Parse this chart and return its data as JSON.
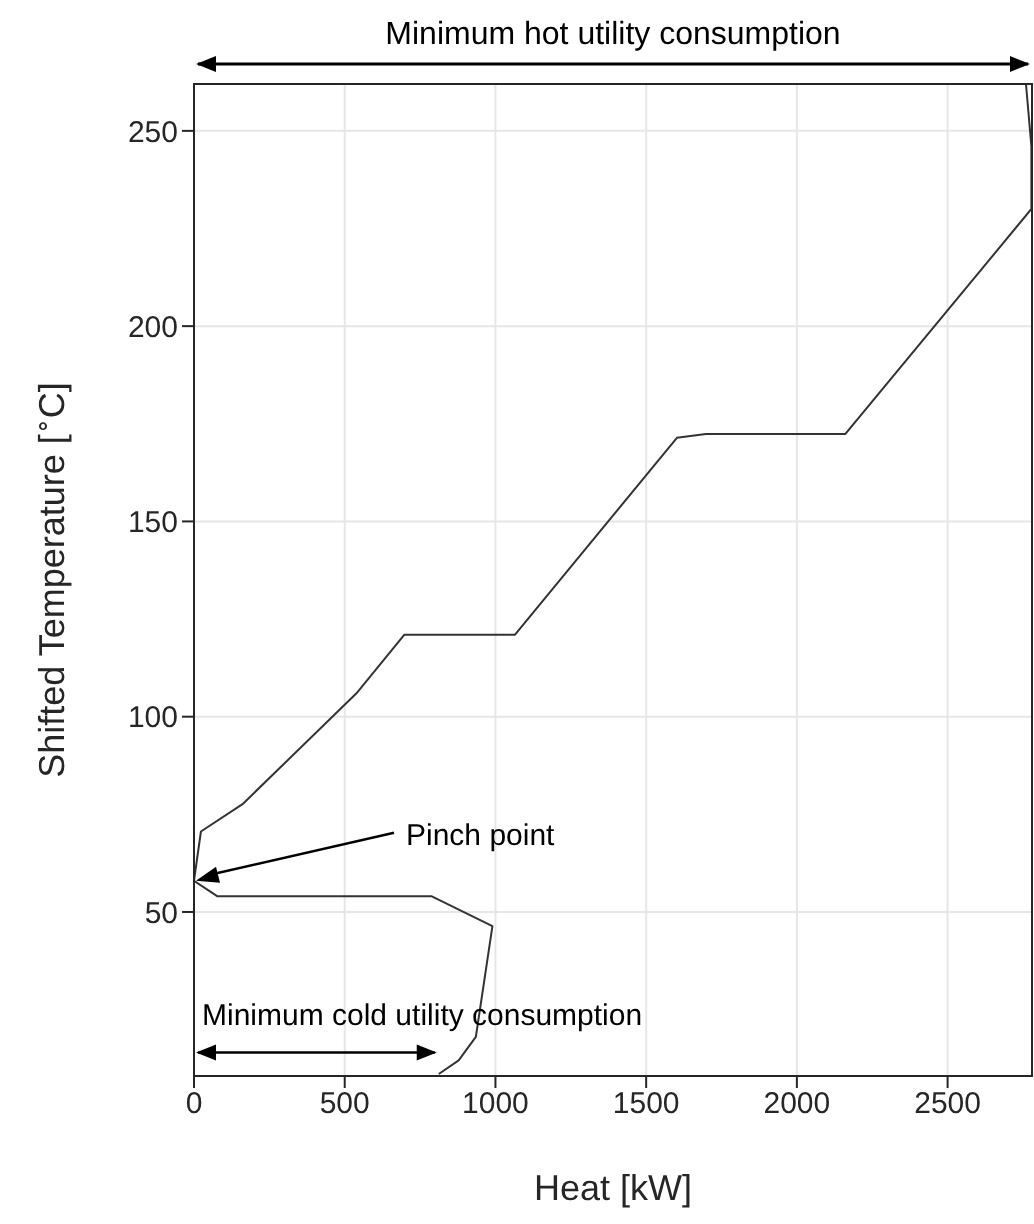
{
  "chart_data": {
    "type": "line",
    "xlabel": "Heat [kW]",
    "ylabel": "Shifted Temperature [$^{∘}$C]",
    "x": [
      812,
      878,
      935,
      990,
      789,
      78,
      0,
      23,
      161,
      539,
      698,
      1065,
      1602,
      1698,
      2161,
      2778,
      2778,
      2760
    ],
    "series": [
      {
        "color": "#333333",
        "values": [
          8.5,
          12,
          18,
          46.4,
          54,
          54,
          58,
          70.6,
          77.6,
          106,
          121,
          121,
          171.4,
          172.4,
          172.4,
          230,
          246,
          262
        ]
      }
    ],
    "xlim": [
      0,
      2780
    ],
    "ylim": [
      8,
      262
    ],
    "xticks": [
      0,
      500,
      1000,
      1500,
      2000,
      2500
    ],
    "yticks": [
      50,
      100,
      150,
      200,
      250
    ],
    "grid": true,
    "marker": "none",
    "line_style": "solid",
    "annotations": [
      "Minimum hot utility consumption",
      {
        "text": "Pinch point",
        "x": 0,
        "y": 58
      },
      "Minimum cold utility consumption"
    ]
  }
}
